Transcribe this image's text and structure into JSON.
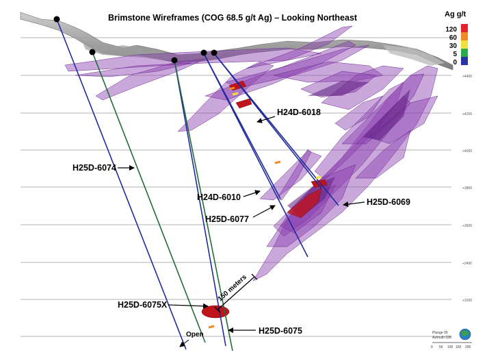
{
  "title": "Brimstone Wireframes (COG 68.5 g/t Ag) – Looking Northeast",
  "legend": {
    "title": "Ag g/t",
    "entries": [
      {
        "label": "120",
        "color": "#e8202a"
      },
      {
        "label": "60",
        "color": "#f08a24"
      },
      {
        "label": "30",
        "color": "#f2e13a"
      },
      {
        "label": "5",
        "color": "#2aa84a"
      },
      {
        "label": "0",
        "color": "#2833a8"
      }
    ]
  },
  "elevations": [
    "+4400",
    "+4200",
    "+4000",
    "+3800",
    "+3600",
    "+3400",
    "+3200"
  ],
  "drillholes": [
    {
      "name": "H25D-6074"
    },
    {
      "name": "H24D-6018"
    },
    {
      "name": "H24D-6010"
    },
    {
      "name": "H25D-6077"
    },
    {
      "name": "H25D-6069"
    },
    {
      "name": "H25D-6075X"
    },
    {
      "name": "H25D-6075"
    }
  ],
  "annotations": {
    "scale_bar": "150 meters",
    "open": "Open"
  },
  "compass": {
    "plunge": "Plunge 00",
    "azimuth": "Azimuth 028",
    "scale_ticks": [
      "0",
      "50",
      "100",
      "150",
      "200"
    ]
  },
  "colors": {
    "wireframe": "#8a3fb0",
    "drillhole": "#1f2a9c",
    "drillhole_alt": "#1f6b3a",
    "high_grade": "#c0141c",
    "topography": "#7a7a7a"
  }
}
